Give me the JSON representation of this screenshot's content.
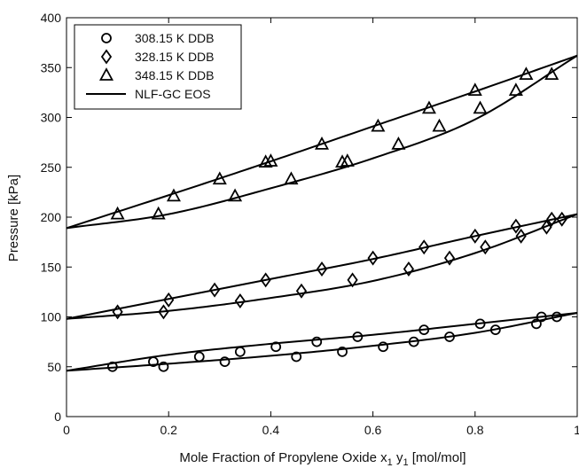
{
  "chart_data": {
    "type": "scatter",
    "title": "",
    "xlabel": "Mole Fraction of Propylene Oxide x",
    "xlabel_sub1": "1",
    "xlabel_mid": " y",
    "xlabel_sub2": "1",
    "xlabel_tail": " [mol/mol]",
    "ylabel": "Pressure [kPa]",
    "xlim": [
      0,
      1
    ],
    "ylim": [
      0,
      400
    ],
    "xticks": [
      "0",
      "0.2",
      "0.4",
      "0.6",
      "0.8",
      "1"
    ],
    "xtick_values": [
      0,
      0.2,
      0.4,
      0.6,
      0.8,
      1
    ],
    "yticks": [
      "0",
      "50",
      "100",
      "150",
      "200",
      "250",
      "300",
      "350",
      "400"
    ],
    "ytick_values": [
      0,
      50,
      100,
      150,
      200,
      250,
      300,
      350,
      400
    ],
    "grid": false,
    "legend_position": "top-left",
    "series": [
      {
        "name": "308.15 K DDB",
        "marker": "circle",
        "points": [
          [
            0.09,
            50
          ],
          [
            0.17,
            55
          ],
          [
            0.19,
            50
          ],
          [
            0.26,
            60
          ],
          [
            0.31,
            55
          ],
          [
            0.34,
            65
          ],
          [
            0.41,
            70
          ],
          [
            0.45,
            60
          ],
          [
            0.49,
            75
          ],
          [
            0.54,
            65
          ],
          [
            0.57,
            80
          ],
          [
            0.62,
            70
          ],
          [
            0.68,
            75
          ],
          [
            0.7,
            87
          ],
          [
            0.75,
            80
          ],
          [
            0.81,
            93
          ],
          [
            0.84,
            87
          ],
          [
            0.92,
            93
          ],
          [
            0.93,
            100
          ],
          [
            0.96,
            100
          ]
        ]
      },
      {
        "name": "328.15 K DDB",
        "marker": "diamond",
        "points": [
          [
            0.1,
            105
          ],
          [
            0.19,
            105
          ],
          [
            0.2,
            117
          ],
          [
            0.29,
            127
          ],
          [
            0.34,
            116
          ],
          [
            0.39,
            137
          ],
          [
            0.46,
            126
          ],
          [
            0.5,
            148
          ],
          [
            0.56,
            137
          ],
          [
            0.6,
            159
          ],
          [
            0.67,
            148
          ],
          [
            0.7,
            170
          ],
          [
            0.75,
            159
          ],
          [
            0.8,
            181
          ],
          [
            0.82,
            170
          ],
          [
            0.88,
            191
          ],
          [
            0.89,
            181
          ],
          [
            0.94,
            190
          ],
          [
            0.95,
            198
          ],
          [
            0.97,
            198
          ]
        ]
      },
      {
        "name": "348.15 K DDB",
        "marker": "triangle",
        "points": [
          [
            0.1,
            203
          ],
          [
            0.18,
            203
          ],
          [
            0.21,
            221
          ],
          [
            0.3,
            238
          ],
          [
            0.33,
            221
          ],
          [
            0.39,
            255
          ],
          [
            0.4,
            256
          ],
          [
            0.44,
            238
          ],
          [
            0.5,
            273
          ],
          [
            0.54,
            255
          ],
          [
            0.55,
            256
          ],
          [
            0.61,
            291
          ],
          [
            0.65,
            273
          ],
          [
            0.71,
            309
          ],
          [
            0.73,
            291
          ],
          [
            0.8,
            327
          ],
          [
            0.81,
            309
          ],
          [
            0.88,
            327
          ],
          [
            0.9,
            343
          ],
          [
            0.95,
            343
          ]
        ]
      },
      {
        "name": "NLF-GC EOS",
        "marker": "line",
        "curves": [
          {
            "x": [
              0,
              0.2,
              0.4,
              0.6,
              0.8,
              1
            ],
            "y": [
              46,
              62,
              73,
              82,
              93,
              104
            ]
          },
          {
            "x": [
              0,
              0.2,
              0.4,
              0.6,
              0.8,
              1
            ],
            "y": [
              46,
              53,
              61,
              71,
              84,
              104
            ]
          },
          {
            "x": [
              0,
              0.2,
              0.4,
              0.6,
              0.8,
              1
            ],
            "y": [
              98,
              118,
              138,
              158,
              181,
              203
            ]
          },
          {
            "x": [
              0,
              0.2,
              0.4,
              0.6,
              0.8,
              1
            ],
            "y": [
              98,
              106,
              119,
              136,
              164,
              203
            ]
          },
          {
            "x": [
              0,
              0.2,
              0.4,
              0.6,
              0.8,
              1
            ],
            "y": [
              189,
              222,
              256,
              291,
              326,
              362
            ]
          },
          {
            "x": [
              0,
              0.2,
              0.4,
              0.6,
              0.8,
              1
            ],
            "y": [
              189,
              203,
              229,
              259,
              298,
              362
            ]
          }
        ]
      }
    ]
  }
}
